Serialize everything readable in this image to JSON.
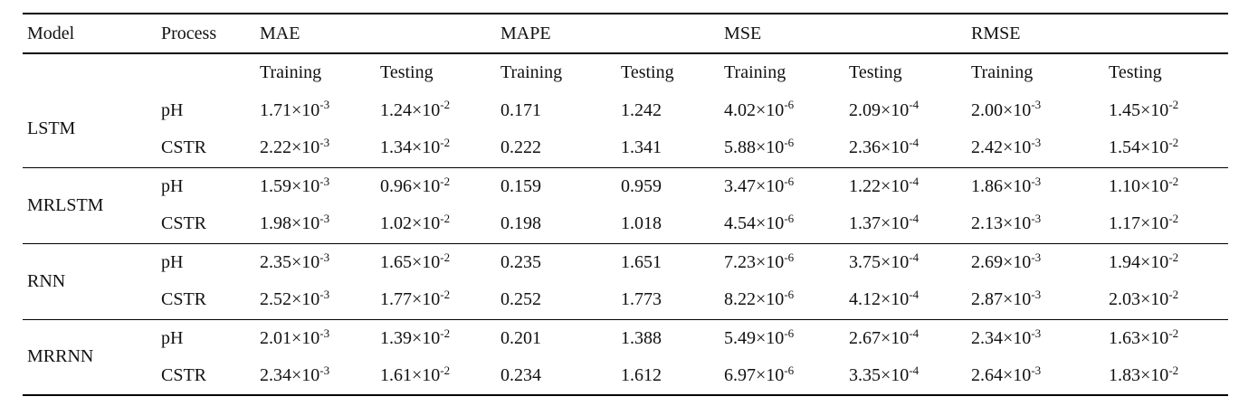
{
  "table": {
    "header": {
      "model": "Model",
      "process": "Process",
      "metrics": [
        "MAE",
        "MAPE",
        "MSE",
        "RMSE"
      ],
      "sub": {
        "training": "Training",
        "testing": "Testing"
      }
    },
    "groups": [
      {
        "model": "LSTM",
        "rows": [
          {
            "process": "pH",
            "values": [
              "1.71×10^-3",
              "1.24×10^-2",
              "0.171",
              "1.242",
              "4.02×10^-6",
              "2.09×10^-4",
              "2.00×10^-3",
              "1.45×10^-2"
            ]
          },
          {
            "process": "CSTR",
            "values": [
              "2.22×10^-3",
              "1.34×10^-2",
              "0.222",
              "1.341",
              "5.88×10^-6",
              "2.36×10^-4",
              "2.42×10^-3",
              "1.54×10^-2"
            ]
          }
        ]
      },
      {
        "model": "MRLSTM",
        "rows": [
          {
            "process": "pH",
            "values": [
              "1.59×10^-3",
              "0.96×10^-2",
              "0.159",
              "0.959",
              "3.47×10^-6",
              "1.22×10^-4",
              "1.86×10^-3",
              "1.10×10^-2"
            ]
          },
          {
            "process": "CSTR",
            "values": [
              "1.98×10^-3",
              "1.02×10^-2",
              "0.198",
              "1.018",
              "4.54×10^-6",
              "1.37×10^-4",
              "2.13×10^-3",
              "1.17×10^-2"
            ]
          }
        ]
      },
      {
        "model": "RNN",
        "rows": [
          {
            "process": "pH",
            "values": [
              "2.35×10^-3",
              "1.65×10^-2",
              "0.235",
              "1.651",
              "7.23×10^-6",
              "3.75×10^-4",
              "2.69×10^-3",
              "1.94×10^-2"
            ]
          },
          {
            "process": "CSTR",
            "values": [
              "2.52×10^-3",
              "1.77×10^-2",
              "0.252",
              "1.773",
              "8.22×10^-6",
              "4.12×10^-4",
              "2.87×10^-3",
              "2.03×10^-2"
            ]
          }
        ]
      },
      {
        "model": "MRRNN",
        "rows": [
          {
            "process": "pH",
            "values": [
              "2.01×10^-3",
              "1.39×10^-2",
              "0.201",
              "1.388",
              "5.49×10^-6",
              "2.67×10^-4",
              "2.34×10^-3",
              "1.63×10^-2"
            ]
          },
          {
            "process": "CSTR",
            "values": [
              "2.34×10^-3",
              "1.61×10^-2",
              "0.234",
              "1.612",
              "6.97×10^-6",
              "3.35×10^-4",
              "2.64×10^-3",
              "1.83×10^-2"
            ]
          }
        ]
      }
    ]
  }
}
